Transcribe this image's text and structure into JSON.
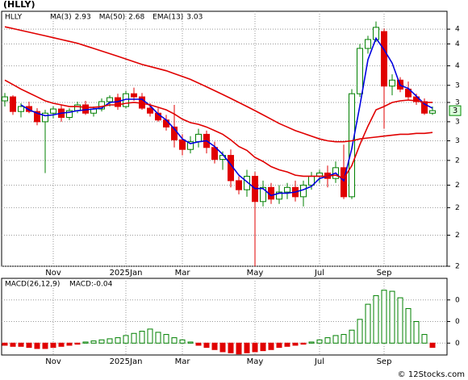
{
  "chart_data": [
    {
      "type": "candlestick",
      "title": "(HLLY)",
      "symbol": "HLLY",
      "log_scale": true,
      "grid": true,
      "categories": [
        null,
        null,
        null,
        null,
        null,
        null,
        "Nov",
        null,
        null,
        null,
        null,
        null,
        null,
        null,
        null,
        "2025Jan",
        null,
        null,
        null,
        null,
        null,
        null,
        "Mar",
        null,
        null,
        null,
        null,
        null,
        null,
        null,
        null,
        "May",
        null,
        null,
        null,
        null,
        null,
        null,
        null,
        "Jul",
        null,
        null,
        null,
        null,
        null,
        null,
        null,
        "Sep",
        null,
        null,
        null,
        null,
        null,
        null
      ],
      "open": [
        3.05,
        3.1,
        2.92,
        2.98,
        2.92,
        2.8,
        2.9,
        2.95,
        2.85,
        2.93,
        3.0,
        2.9,
        2.95,
        3.04,
        3.09,
        2.98,
        3.14,
        3.1,
        2.96,
        2.9,
        2.82,
        2.74,
        2.6,
        2.5,
        2.58,
        2.66,
        2.52,
        2.4,
        2.44,
        2.2,
        2.12,
        2.24,
        2.02,
        2.14,
        2.04,
        2.1,
        2.14,
        2.06,
        2.16,
        2.24,
        2.27,
        2.22,
        2.32,
        2.06,
        3.14,
        3.78,
        3.92,
        4.05,
        3.24,
        3.32,
        3.2,
        3.1,
        3.04,
        2.9
      ],
      "high": [
        3.15,
        3.12,
        3.02,
        3.04,
        2.96,
        2.94,
        2.98,
        3.0,
        2.96,
        3.04,
        3.05,
        2.98,
        3.08,
        3.12,
        3.14,
        3.18,
        3.22,
        3.15,
        3.02,
        2.96,
        2.88,
        3.0,
        2.66,
        2.64,
        2.72,
        2.7,
        2.58,
        2.48,
        2.5,
        2.24,
        2.3,
        2.28,
        2.2,
        2.18,
        2.16,
        2.18,
        2.2,
        2.2,
        2.28,
        2.3,
        2.34,
        2.38,
        2.55,
        3.2,
        3.85,
        3.98,
        4.22,
        4.1,
        3.4,
        3.36,
        3.3,
        3.14,
        3.08,
        2.98
      ],
      "low": [
        2.98,
        2.88,
        2.85,
        2.9,
        2.76,
        2.27,
        2.84,
        2.8,
        2.82,
        2.9,
        2.88,
        2.86,
        2.92,
        2.98,
        2.94,
        2.96,
        3.05,
        2.94,
        2.86,
        2.8,
        2.7,
        2.52,
        2.44,
        2.46,
        2.52,
        2.46,
        2.36,
        2.3,
        2.14,
        2.08,
        2.06,
        1.55,
        1.98,
        2.0,
        2.0,
        2.04,
        2.02,
        1.98,
        2.12,
        2.18,
        2.14,
        2.18,
        2.04,
        2.04,
        3.1,
        3.7,
        3.88,
        2.72,
        3.12,
        3.16,
        3.06,
        3.0,
        2.88,
        2.88
      ],
      "close": [
        3.1,
        2.92,
        2.98,
        2.92,
        2.8,
        2.9,
        2.95,
        2.85,
        2.93,
        3.0,
        2.9,
        2.95,
        3.04,
        3.09,
        2.98,
        3.14,
        3.1,
        2.96,
        2.9,
        2.82,
        2.74,
        2.6,
        2.5,
        2.58,
        2.66,
        2.52,
        2.4,
        2.44,
        2.2,
        2.12,
        2.24,
        2.02,
        2.14,
        2.04,
        2.1,
        2.14,
        2.06,
        2.16,
        2.24,
        2.27,
        2.22,
        2.32,
        2.06,
        3.14,
        3.78,
        3.92,
        4.12,
        3.24,
        3.32,
        3.2,
        3.1,
        3.04,
        2.9,
        2.93
      ],
      "up_color": "#008000",
      "down_color": "#e00000",
      "series": [
        {
          "name": "MA(3)",
          "color": "#0000e0",
          "label_value": 2.93,
          "values": [
            null,
            null,
            3.0,
            2.94,
            2.9,
            2.87,
            2.88,
            2.9,
            2.91,
            2.93,
            2.94,
            2.95,
            2.96,
            3.03,
            3.04,
            3.07,
            3.07,
            3.07,
            2.99,
            2.89,
            2.82,
            2.72,
            2.61,
            2.56,
            2.58,
            2.59,
            2.53,
            2.45,
            2.35,
            2.25,
            2.19,
            2.13,
            2.13,
            2.07,
            2.09,
            2.09,
            2.1,
            2.12,
            2.15,
            2.22,
            2.24,
            2.27,
            2.2,
            2.51,
            2.99,
            3.61,
            3.94,
            3.76,
            3.56,
            3.25,
            3.21,
            3.11,
            3.01,
            2.96
          ]
        },
        {
          "name": "MA(50)",
          "color": "#e00000",
          "label_value": 2.68,
          "values": [
            4.13,
            4.1,
            4.07,
            4.04,
            4.01,
            3.98,
            3.95,
            3.92,
            3.89,
            3.86,
            3.82,
            3.78,
            3.74,
            3.7,
            3.66,
            3.62,
            3.58,
            3.54,
            3.51,
            3.48,
            3.45,
            3.41,
            3.37,
            3.33,
            3.28,
            3.23,
            3.18,
            3.13,
            3.08,
            3.03,
            2.98,
            2.93,
            2.88,
            2.83,
            2.78,
            2.74,
            2.7,
            2.67,
            2.64,
            2.61,
            2.59,
            2.58,
            2.58,
            2.59,
            2.61,
            2.62,
            2.63,
            2.64,
            2.65,
            2.66,
            2.66,
            2.67,
            2.67,
            2.68
          ]
        },
        {
          "name": "EMA(13)",
          "color": "#e00000",
          "label_value": 3.03,
          "values": [
            3.32,
            3.26,
            3.2,
            3.15,
            3.1,
            3.05,
            3.02,
            3.0,
            2.98,
            2.98,
            2.97,
            2.97,
            2.98,
            3.0,
            3.0,
            3.02,
            3.03,
            3.02,
            3.0,
            2.97,
            2.94,
            2.89,
            2.83,
            2.79,
            2.77,
            2.74,
            2.7,
            2.66,
            2.6,
            2.53,
            2.49,
            2.42,
            2.38,
            2.33,
            2.3,
            2.28,
            2.25,
            2.24,
            2.24,
            2.24,
            2.24,
            2.25,
            2.22,
            2.34,
            2.55,
            2.75,
            2.94,
            2.98,
            3.03,
            3.05,
            3.06,
            3.05,
            3.03,
            3.03
          ]
        }
      ],
      "last_price_label": {
        "value": 2.93,
        "label": "3"
      },
      "ylim": [
        1.55,
        4.4
      ],
      "yticks": [
        {
          "value": 4.09,
          "label": "4"
        },
        {
          "value": 3.85,
          "label": "4"
        },
        {
          "value": 3.52,
          "label": "4"
        },
        {
          "value": 3.25,
          "label": "3"
        },
        {
          "value": 3.03,
          "label": "3"
        },
        {
          "value": 2.8,
          "label": "3"
        },
        {
          "value": 2.59,
          "label": "3"
        },
        {
          "value": 2.39,
          "label": "2"
        },
        {
          "value": 2.16,
          "label": "2"
        },
        {
          "value": 1.97,
          "label": "2"
        },
        {
          "value": 1.76,
          "label": "2"
        },
        {
          "value": 1.55,
          "label": "2"
        }
      ]
    },
    {
      "type": "bar",
      "title": "MACD(26,12,9)",
      "macd_label": "MACD:-0.04",
      "grid": true,
      "categories": [
        null,
        null,
        null,
        null,
        null,
        null,
        "Nov",
        null,
        null,
        null,
        null,
        null,
        null,
        null,
        null,
        "2025Jan",
        null,
        null,
        null,
        null,
        null,
        null,
        "Mar",
        null,
        null,
        null,
        null,
        null,
        null,
        null,
        null,
        "May",
        null,
        null,
        null,
        null,
        null,
        null,
        null,
        "Jul",
        null,
        null,
        null,
        null,
        null,
        null,
        null,
        "Sep",
        null,
        null,
        null,
        null,
        null,
        null
      ],
      "values": [
        -0.02,
        -0.03,
        -0.03,
        -0.04,
        -0.05,
        -0.05,
        -0.04,
        -0.03,
        -0.02,
        -0.01,
        0.01,
        0.02,
        0.03,
        0.04,
        0.05,
        0.07,
        0.09,
        0.11,
        0.13,
        0.1,
        0.08,
        0.05,
        0.03,
        0.01,
        -0.02,
        -0.04,
        -0.06,
        -0.08,
        -0.09,
        -0.1,
        -0.09,
        -0.08,
        -0.07,
        -0.06,
        -0.04,
        -0.03,
        -0.02,
        -0.01,
        0.01,
        0.03,
        0.05,
        0.07,
        0.08,
        0.12,
        0.22,
        0.36,
        0.44,
        0.49,
        0.48,
        0.42,
        0.32,
        0.2,
        0.08,
        -0.04
      ],
      "up_color": "#008000",
      "down_color": "#e00000",
      "ylim": [
        -0.11,
        0.6
      ],
      "yticks": [
        {
          "value": 0.4,
          "label": "0"
        },
        {
          "value": 0.2,
          "label": "0"
        },
        0
      ]
    }
  ],
  "watermark": "© 12Stocks.com"
}
